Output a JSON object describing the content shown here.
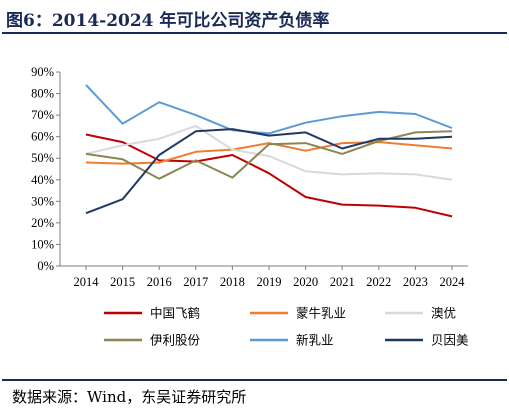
{
  "title": "图6：2014-2024 年可比公司资产负债率",
  "source": "数据来源：Wind，东吴证券研究所",
  "chart_data": {
    "type": "line",
    "x": [
      2014,
      2015,
      2016,
      2017,
      2018,
      2019,
      2020,
      2021,
      2022,
      2023,
      2024
    ],
    "ylim": [
      0,
      90
    ],
    "yticks": [
      0,
      10,
      20,
      30,
      40,
      50,
      60,
      70,
      80,
      90
    ],
    "ytick_labels": [
      "0%",
      "10%",
      "20%",
      "30%",
      "40%",
      "50%",
      "60%",
      "70%",
      "80%",
      "90%"
    ],
    "grid": false,
    "legend_position": "bottom",
    "series": [
      {
        "name": "中国飞鹤",
        "color": "#c00000",
        "values": [
          61,
          57.5,
          49,
          48.5,
          51.5,
          43,
          32,
          28.5,
          28,
          27,
          23
        ]
      },
      {
        "name": "蒙牛乳业",
        "color": "#ed7d31",
        "values": [
          48,
          47.5,
          48,
          53,
          54,
          57,
          53.5,
          57,
          57.5,
          56,
          54.5
        ]
      },
      {
        "name": "澳优",
        "color": "#d9d9d9",
        "values": [
          52,
          56,
          59,
          65,
          54,
          51,
          44,
          42.5,
          43,
          42.5,
          40
        ]
      },
      {
        "name": "伊利股份",
        "color": "#8b8654",
        "values": [
          52,
          49.5,
          40.5,
          49,
          41,
          56.5,
          57,
          52,
          58,
          62,
          62.5
        ]
      },
      {
        "name": "新乳业",
        "color": "#5b9bd5",
        "values": [
          84,
          66,
          76,
          70,
          63,
          61.5,
          66.5,
          69.5,
          71.5,
          70.5,
          64
        ]
      },
      {
        "name": "贝因美",
        "color": "#1f3864",
        "values": [
          24.5,
          31,
          51.5,
          62.5,
          63.5,
          60.5,
          62,
          54.5,
          59,
          59,
          60
        ]
      }
    ]
  }
}
